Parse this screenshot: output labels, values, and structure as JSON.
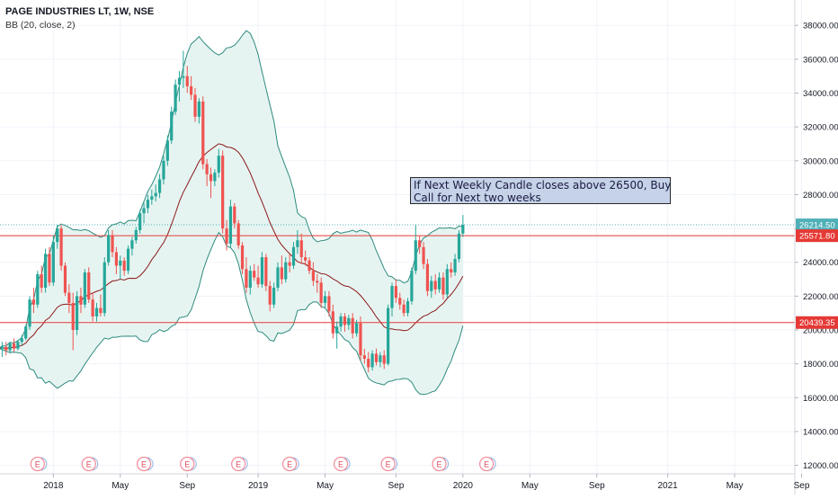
{
  "header": {
    "title": "PAGE INDUSTRIES LT, 1W, NSE",
    "indicator": "BB (20, close, 2)"
  },
  "annotation": {
    "line1": "If Next Weekly Candle closes above 26500, Buy",
    "line2": "Call for Next two weeks"
  },
  "colors": {
    "up": "#26a69a",
    "down": "#ef5350",
    "band": "#2e8b7f",
    "basis": "#8b1a1a",
    "band_fill": "#e6f4f1",
    "hline": "#e53935",
    "last_line": "#4fb0b8"
  },
  "chart_data": {
    "type": "candlestick",
    "symbol": "PAGE INDUSTRIES LT",
    "timeframe": "1W",
    "exchange": "NSE",
    "indicator": "BB (20, close, 2)",
    "ylim": [
      11500,
      39500
    ],
    "y_ticks": [
      12000,
      14000,
      16000,
      18000,
      20000,
      22000,
      24000,
      26000,
      28000,
      30000,
      32000,
      34000,
      36000,
      38000
    ],
    "y_tick_labels": [
      "12000.00",
      "14000.00",
      "16000.00",
      "18000.00",
      "20000.00",
      "22000.00",
      "24000.00",
      "26000.00",
      "28000.00",
      "30000.00",
      "32000.00",
      "34000.00",
      "36000.00",
      "38000.00"
    ],
    "x_ticks": [
      {
        "label": "2018",
        "week": 14
      },
      {
        "label": "May",
        "week": 31
      },
      {
        "label": "Sep",
        "week": 48
      },
      {
        "label": "2019",
        "week": 66
      },
      {
        "label": "May",
        "week": 83
      },
      {
        "label": "Sep",
        "week": 101
      },
      {
        "label": "2020",
        "week": 118
      },
      {
        "label": "May",
        "week": 135
      },
      {
        "label": "Sep",
        "week": 152
      },
      {
        "label": "2021",
        "week": 170
      },
      {
        "label": "May",
        "week": 187
      },
      {
        "label": "Sep",
        "week": 204
      }
    ],
    "x_range": [
      0,
      214
    ],
    "horizontal_lines": [
      {
        "value": 25571.8,
        "label": "25571.80"
      },
      {
        "value": 20439.35,
        "label": "20439.35"
      }
    ],
    "last_price": {
      "value": 26214.5,
      "label": "26214.50"
    },
    "earnings_weeks": [
      10,
      23,
      37,
      48,
      61,
      74,
      87,
      99,
      112,
      124
    ],
    "earnings_label": "E",
    "candles": [
      {
        "o": 18600,
        "h": 19100,
        "l": 18300,
        "c": 18900
      },
      {
        "o": 18900,
        "h": 19300,
        "l": 18400,
        "c": 19000
      },
      {
        "o": 19000,
        "h": 19300,
        "l": 18500,
        "c": 18800
      },
      {
        "o": 18800,
        "h": 19300,
        "l": 18600,
        "c": 19200
      },
      {
        "o": 19200,
        "h": 19500,
        "l": 18700,
        "c": 18900
      },
      {
        "o": 18900,
        "h": 19400,
        "l": 18800,
        "c": 19300
      },
      {
        "o": 19300,
        "h": 19700,
        "l": 19100,
        "c": 19500
      },
      {
        "o": 19500,
        "h": 20300,
        "l": 19400,
        "c": 20200
      },
      {
        "o": 20200,
        "h": 22000,
        "l": 20000,
        "c": 21800
      },
      {
        "o": 21800,
        "h": 22500,
        "l": 21000,
        "c": 21500
      },
      {
        "o": 21500,
        "h": 23500,
        "l": 21300,
        "c": 23300
      },
      {
        "o": 23300,
        "h": 23800,
        "l": 22200,
        "c": 22500
      },
      {
        "o": 22500,
        "h": 24800,
        "l": 22200,
        "c": 24500
      },
      {
        "o": 24500,
        "h": 24900,
        "l": 22600,
        "c": 22800
      },
      {
        "o": 22800,
        "h": 25600,
        "l": 22600,
        "c": 25200
      },
      {
        "o": 25200,
        "h": 26200,
        "l": 24800,
        "c": 26000
      },
      {
        "o": 26000,
        "h": 26200,
        "l": 23500,
        "c": 23800
      },
      {
        "o": 23800,
        "h": 24000,
        "l": 22000,
        "c": 22200
      },
      {
        "o": 22200,
        "h": 22700,
        "l": 21000,
        "c": 21600
      },
      {
        "o": 21600,
        "h": 22200,
        "l": 18800,
        "c": 20000
      },
      {
        "o": 20000,
        "h": 22300,
        "l": 19700,
        "c": 22000
      },
      {
        "o": 22000,
        "h": 22500,
        "l": 21000,
        "c": 21500
      },
      {
        "o": 21500,
        "h": 23600,
        "l": 21300,
        "c": 23400
      },
      {
        "o": 23400,
        "h": 23700,
        "l": 21600,
        "c": 21800
      },
      {
        "o": 21800,
        "h": 22200,
        "l": 20500,
        "c": 20800
      },
      {
        "o": 20800,
        "h": 21600,
        "l": 20500,
        "c": 21300
      },
      {
        "o": 21300,
        "h": 22100,
        "l": 20800,
        "c": 21000
      },
      {
        "o": 21000,
        "h": 24300,
        "l": 20800,
        "c": 24000
      },
      {
        "o": 24000,
        "h": 25900,
        "l": 23800,
        "c": 25600
      },
      {
        "o": 25600,
        "h": 25900,
        "l": 24300,
        "c": 24600
      },
      {
        "o": 24600,
        "h": 24900,
        "l": 23300,
        "c": 23800
      },
      {
        "o": 23800,
        "h": 24400,
        "l": 23000,
        "c": 24100
      },
      {
        "o": 24100,
        "h": 24300,
        "l": 23200,
        "c": 23500
      },
      {
        "o": 23500,
        "h": 25000,
        "l": 23300,
        "c": 24800
      },
      {
        "o": 24800,
        "h": 25500,
        "l": 24400,
        "c": 25300
      },
      {
        "o": 25300,
        "h": 26100,
        "l": 25100,
        "c": 25900
      },
      {
        "o": 25900,
        "h": 27100,
        "l": 25700,
        "c": 26900
      },
      {
        "o": 26900,
        "h": 27500,
        "l": 26300,
        "c": 27200
      },
      {
        "o": 27200,
        "h": 28000,
        "l": 26900,
        "c": 27700
      },
      {
        "o": 27700,
        "h": 28300,
        "l": 27400,
        "c": 27900
      },
      {
        "o": 27900,
        "h": 28600,
        "l": 27600,
        "c": 28100
      },
      {
        "o": 28100,
        "h": 29200,
        "l": 27800,
        "c": 28900
      },
      {
        "o": 28900,
        "h": 30300,
        "l": 28600,
        "c": 30000
      },
      {
        "o": 30000,
        "h": 31500,
        "l": 29700,
        "c": 31200
      },
      {
        "o": 31200,
        "h": 33200,
        "l": 31000,
        "c": 32900
      },
      {
        "o": 32900,
        "h": 34800,
        "l": 32700,
        "c": 34500
      },
      {
        "o": 34500,
        "h": 35300,
        "l": 33500,
        "c": 34900
      },
      {
        "o": 34900,
        "h": 36500,
        "l": 34300,
        "c": 35000
      },
      {
        "o": 35000,
        "h": 35600,
        "l": 34000,
        "c": 34400
      },
      {
        "o": 34400,
        "h": 35000,
        "l": 33600,
        "c": 33900
      },
      {
        "o": 33900,
        "h": 34300,
        "l": 32300,
        "c": 32600
      },
      {
        "o": 32600,
        "h": 33700,
        "l": 32200,
        "c": 33500
      },
      {
        "o": 33500,
        "h": 33800,
        "l": 29500,
        "c": 29800
      },
      {
        "o": 29800,
        "h": 30100,
        "l": 28500,
        "c": 29200
      },
      {
        "o": 29200,
        "h": 29600,
        "l": 27800,
        "c": 28800
      },
      {
        "o": 28800,
        "h": 29500,
        "l": 28500,
        "c": 29300
      },
      {
        "o": 29300,
        "h": 30700,
        "l": 29000,
        "c": 30300
      },
      {
        "o": 30300,
        "h": 30600,
        "l": 25700,
        "c": 26000
      },
      {
        "o": 26000,
        "h": 26500,
        "l": 24700,
        "c": 25100
      },
      {
        "o": 25100,
        "h": 27700,
        "l": 24900,
        "c": 27300
      },
      {
        "o": 27300,
        "h": 27500,
        "l": 26000,
        "c": 26300
      },
      {
        "o": 26300,
        "h": 26500,
        "l": 24800,
        "c": 25000
      },
      {
        "o": 25000,
        "h": 25200,
        "l": 23300,
        "c": 23600
      },
      {
        "o": 23600,
        "h": 24300,
        "l": 22200,
        "c": 22500
      },
      {
        "o": 22500,
        "h": 23800,
        "l": 22100,
        "c": 23500
      },
      {
        "o": 23500,
        "h": 23900,
        "l": 22900,
        "c": 23100
      },
      {
        "o": 23100,
        "h": 23800,
        "l": 22500,
        "c": 22700
      },
      {
        "o": 22700,
        "h": 24600,
        "l": 22500,
        "c": 24300
      },
      {
        "o": 24300,
        "h": 24500,
        "l": 22300,
        "c": 22600
      },
      {
        "o": 22600,
        "h": 22900,
        "l": 21100,
        "c": 21500
      },
      {
        "o": 21500,
        "h": 22800,
        "l": 21300,
        "c": 22500
      },
      {
        "o": 22500,
        "h": 24000,
        "l": 22300,
        "c": 23700
      },
      {
        "o": 23700,
        "h": 24400,
        "l": 22700,
        "c": 23000
      },
      {
        "o": 23000,
        "h": 24300,
        "l": 22800,
        "c": 24000
      },
      {
        "o": 24000,
        "h": 24500,
        "l": 23400,
        "c": 23800
      },
      {
        "o": 23800,
        "h": 25200,
        "l": 23600,
        "c": 24900
      },
      {
        "o": 24900,
        "h": 25900,
        "l": 24500,
        "c": 25300
      },
      {
        "o": 25300,
        "h": 25700,
        "l": 23900,
        "c": 24300
      },
      {
        "o": 24300,
        "h": 24700,
        "l": 23800,
        "c": 24100
      },
      {
        "o": 24100,
        "h": 24300,
        "l": 23300,
        "c": 23500
      },
      {
        "o": 23500,
        "h": 24000,
        "l": 22600,
        "c": 22900
      },
      {
        "o": 22900,
        "h": 23300,
        "l": 22200,
        "c": 22800
      },
      {
        "o": 22800,
        "h": 23100,
        "l": 21300,
        "c": 21600
      },
      {
        "o": 21600,
        "h": 22300,
        "l": 21300,
        "c": 22000
      },
      {
        "o": 22000,
        "h": 22300,
        "l": 20800,
        "c": 21100
      },
      {
        "o": 21100,
        "h": 21500,
        "l": 19500,
        "c": 19800
      },
      {
        "o": 19800,
        "h": 20500,
        "l": 18900,
        "c": 20200
      },
      {
        "o": 20200,
        "h": 21000,
        "l": 19900,
        "c": 20800
      },
      {
        "o": 20800,
        "h": 21000,
        "l": 19900,
        "c": 20300
      },
      {
        "o": 20300,
        "h": 20900,
        "l": 20000,
        "c": 20700
      },
      {
        "o": 20700,
        "h": 21000,
        "l": 19500,
        "c": 19800
      },
      {
        "o": 19800,
        "h": 20600,
        "l": 19600,
        "c": 20400
      },
      {
        "o": 20400,
        "h": 20800,
        "l": 18200,
        "c": 18500
      },
      {
        "o": 18500,
        "h": 18900,
        "l": 18000,
        "c": 18300
      },
      {
        "o": 18300,
        "h": 18700,
        "l": 17500,
        "c": 17800
      },
      {
        "o": 17800,
        "h": 18800,
        "l": 17600,
        "c": 18600
      },
      {
        "o": 18600,
        "h": 18900,
        "l": 17900,
        "c": 18100
      },
      {
        "o": 18100,
        "h": 18700,
        "l": 17800,
        "c": 18500
      },
      {
        "o": 18500,
        "h": 18800,
        "l": 17700,
        "c": 18000
      },
      {
        "o": 18000,
        "h": 21500,
        "l": 17900,
        "c": 21300
      },
      {
        "o": 21300,
        "h": 22800,
        "l": 20800,
        "c": 22600
      },
      {
        "o": 22600,
        "h": 23000,
        "l": 21600,
        "c": 21900
      },
      {
        "o": 21900,
        "h": 22200,
        "l": 21200,
        "c": 21500
      },
      {
        "o": 21500,
        "h": 21800,
        "l": 20800,
        "c": 21000
      },
      {
        "o": 21000,
        "h": 21900,
        "l": 20800,
        "c": 21700
      },
      {
        "o": 21700,
        "h": 23700,
        "l": 21500,
        "c": 23500
      },
      {
        "o": 23500,
        "h": 26200,
        "l": 23300,
        "c": 25300
      },
      {
        "o": 25300,
        "h": 25600,
        "l": 24500,
        "c": 24900
      },
      {
        "o": 24900,
        "h": 25200,
        "l": 23600,
        "c": 23900
      },
      {
        "o": 23900,
        "h": 24200,
        "l": 22000,
        "c": 22300
      },
      {
        "o": 22300,
        "h": 23200,
        "l": 21900,
        "c": 22900
      },
      {
        "o": 22900,
        "h": 23300,
        "l": 22100,
        "c": 22400
      },
      {
        "o": 22400,
        "h": 23400,
        "l": 22200,
        "c": 23100
      },
      {
        "o": 23100,
        "h": 23400,
        "l": 21800,
        "c": 22100
      },
      {
        "o": 22100,
        "h": 23900,
        "l": 21900,
        "c": 23600
      },
      {
        "o": 23600,
        "h": 24000,
        "l": 23100,
        "c": 23400
      },
      {
        "o": 23400,
        "h": 24500,
        "l": 23200,
        "c": 24200
      },
      {
        "o": 24200,
        "h": 25900,
        "l": 24000,
        "c": 25700
      },
      {
        "o": 25700,
        "h": 26800,
        "l": 25500,
        "c": 26214.5
      }
    ]
  }
}
